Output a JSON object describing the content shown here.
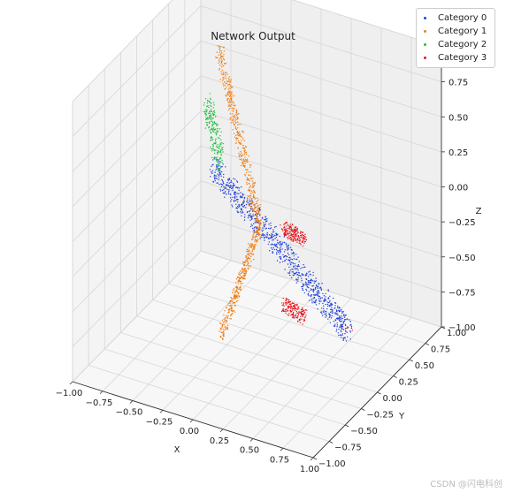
{
  "chart_data": {
    "type": "scatter",
    "projection": "3d",
    "title": "Network Output",
    "xlabel": "X",
    "ylabel": "Y",
    "zlabel": "Z",
    "xlim": [
      -1.0,
      1.0
    ],
    "ylim": [
      -1.0,
      1.0
    ],
    "zlim": [
      -1.0,
      1.0
    ],
    "x_ticks": [
      "−1.00",
      "−0.75",
      "−0.50",
      "−0.25",
      "0.00",
      "0.25",
      "0.50",
      "0.75",
      "1.00"
    ],
    "y_ticks": [
      "−1.00",
      "−0.75",
      "−0.50",
      "−0.25",
      "0.00",
      "0.25",
      "0.50",
      "0.75",
      "1.00"
    ],
    "z_ticks": [
      "−1.00",
      "−0.75",
      "−0.50",
      "−0.25",
      "0.00",
      "0.25",
      "0.50",
      "0.75",
      "1.00"
    ],
    "grid": true,
    "legend_position": "top-right",
    "series": [
      {
        "name": "Category 0",
        "color": "#1f3fd8",
        "shape": "ellipse",
        "clusters": [
          {
            "from": [
              -0.55,
              0.35,
              0.02
            ],
            "to": [
              0.95,
              -0.35,
              -0.42
            ],
            "radius": 0.08,
            "count": 900
          }
        ]
      },
      {
        "name": "Category 1",
        "color": "#f07d12",
        "shape": "wing",
        "clusters": [
          {
            "from": [
              -0.45,
              0.25,
              0.95
            ],
            "to": [
              0.05,
              -0.05,
              -0.05
            ],
            "radius": 0.06,
            "count": 450
          },
          {
            "from": [
              0.05,
              -0.05,
              -0.05
            ],
            "to": [
              -0.3,
              0.0,
              -0.95
            ],
            "radius": 0.06,
            "count": 380
          }
        ]
      },
      {
        "name": "Category 2",
        "color": "#1fbf3f",
        "shape": "tail",
        "clusters": [
          {
            "from": [
              -0.7,
              0.55,
              0.35
            ],
            "to": [
              -0.55,
              0.45,
              0.0
            ],
            "radius": 0.08,
            "count": 220
          }
        ]
      },
      {
        "name": "Category 3",
        "color": "#e8141a",
        "shape": "engines",
        "clusters": [
          {
            "from": [
              0.25,
              -0.05,
              0.0
            ],
            "to": [
              0.45,
              -0.1,
              -0.02
            ],
            "radius": 0.05,
            "count": 180
          },
          {
            "from": [
              0.25,
              -0.05,
              -0.55
            ],
            "to": [
              0.45,
              -0.1,
              -0.57
            ],
            "radius": 0.05,
            "count": 170
          },
          {
            "from": [
              0.85,
              -0.2,
              -0.5
            ],
            "to": [
              0.9,
              -0.2,
              -0.5
            ],
            "radius": 0.02,
            "count": 6
          }
        ]
      }
    ]
  },
  "watermark": "CSDN @闪电科创"
}
